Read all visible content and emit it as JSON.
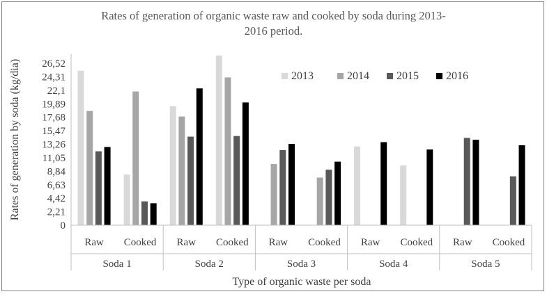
{
  "chart_data": {
    "type": "bar",
    "title_line1": "Rates of generation of organic waste raw and cooked by soda during 2013-",
    "title_line2": "2016 period.",
    "xlabel": "Type of organic waste per soda",
    "ylabel": "Rates of generation by soda (kg/dia)",
    "ylim": [
      0,
      28
    ],
    "yticks": [
      "0",
      "2,21",
      "4,42",
      "6,63",
      "8,84",
      "11,05",
      "13,26",
      "15,47",
      "17,68",
      "19,89",
      "22,1",
      "24,31",
      "26,52"
    ],
    "ytick_values": [
      0,
      2.21,
      4.42,
      6.63,
      8.84,
      11.05,
      13.26,
      15.47,
      17.68,
      19.89,
      22.1,
      24.31,
      26.52
    ],
    "groups": [
      "Soda 1",
      "Soda 2",
      "Soda 3",
      "Soda 4",
      "Soda 5"
    ],
    "categories": [
      "Raw",
      "Cooked",
      "Raw",
      "Cooked",
      "Raw",
      "Cooked",
      "Raw",
      "Cooked",
      "Raw",
      "Cooked"
    ],
    "series": [
      {
        "name": "2013",
        "color": "#d9d9d9",
        "values": [
          25.3,
          8.3,
          19.5,
          27.8,
          0,
          0,
          12.9,
          9.8,
          0,
          0
        ]
      },
      {
        "name": "2014",
        "color": "#a6a6a6",
        "values": [
          18.7,
          21.9,
          17.8,
          24.2,
          10.0,
          7.8,
          0,
          0,
          0,
          0
        ]
      },
      {
        "name": "2015",
        "color": "#595959",
        "values": [
          12.1,
          3.9,
          14.5,
          14.6,
          12.3,
          9.1,
          0,
          0,
          14.3,
          8.0
        ]
      },
      {
        "name": "2016",
        "color": "#000000",
        "values": [
          12.8,
          3.6,
          22.4,
          20.1,
          13.3,
          10.4,
          13.6,
          12.4,
          14.0,
          13.1
        ]
      }
    ],
    "legend_position": "top-right",
    "grid": false
  }
}
